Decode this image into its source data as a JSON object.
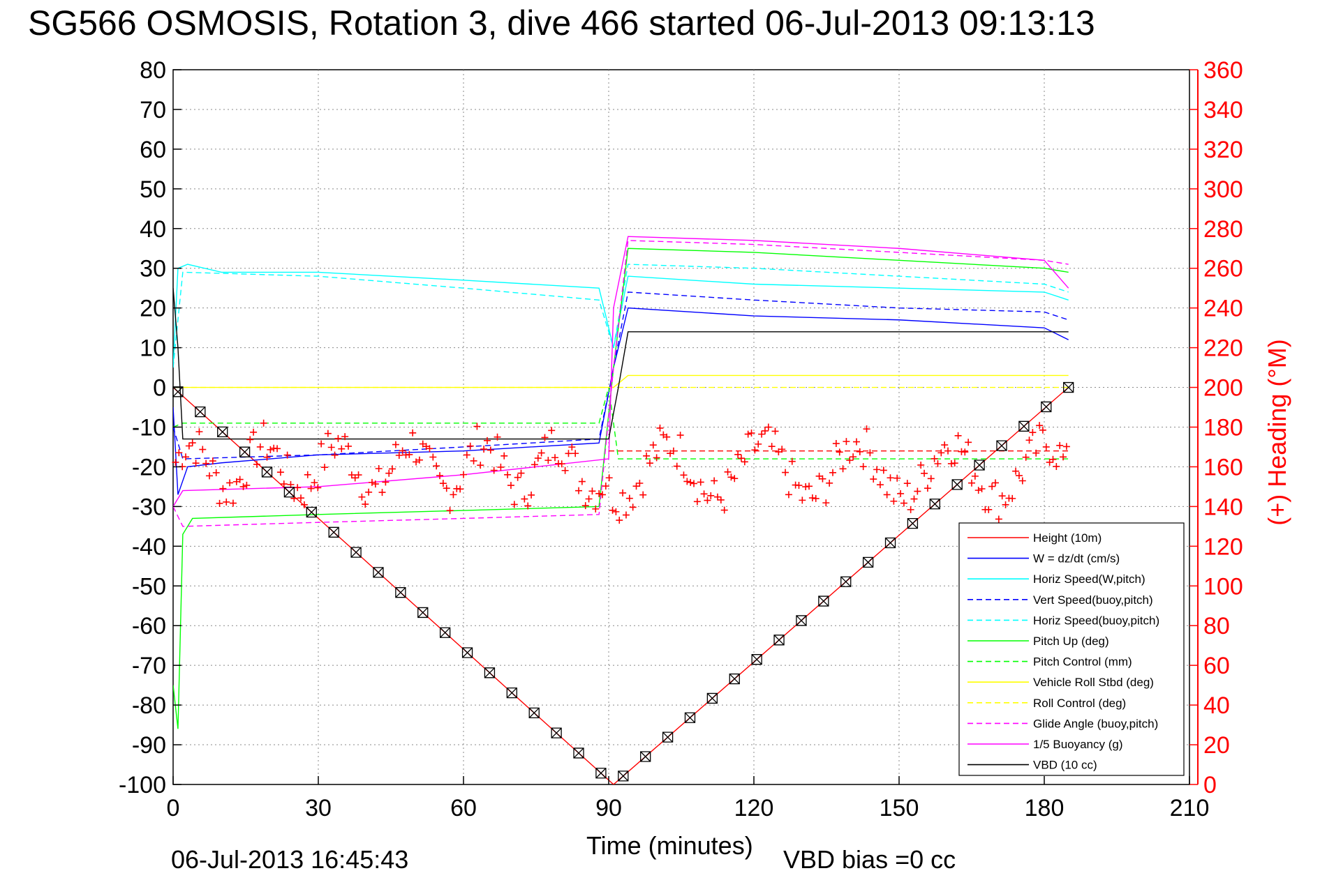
{
  "chart_data": {
    "type": "line",
    "title": "SG566 OSMOSIS, Rotation 3, dive 466 started 06-Jul-2013 09:13:13",
    "xlabel": "Time (minutes)",
    "ylabel_right": "(+) Heading (°M)",
    "xlim": [
      0,
      210
    ],
    "ylim_left": [
      -100,
      80
    ],
    "ylim_right": [
      0,
      360
    ],
    "xticks": [
      "0",
      "30",
      "60",
      "90",
      "120",
      "150",
      "180",
      "210"
    ],
    "yticks_left": [
      "80",
      "70",
      "60",
      "50",
      "40",
      "30",
      "20",
      "10",
      "0",
      "-10",
      "-20",
      "-30",
      "-40",
      "-50",
      "-60",
      "-70",
      "-80",
      "-90",
      "-100"
    ],
    "yticks_right": [
      "360",
      "340",
      "320",
      "300",
      "280",
      "260",
      "240",
      "220",
      "200",
      "180",
      "160",
      "140",
      "120",
      "100",
      "80",
      "60",
      "40",
      "20",
      "0"
    ],
    "grid": true,
    "legend_position": "bottom-right",
    "footer_left": "06-Jul-2013 16:45:43",
    "footer_right": "VBD bias =0 cc",
    "series": [
      {
        "name": "Height (10m)",
        "color": "#ff0000",
        "style": "solid",
        "x": [
          0,
          91,
          185
        ],
        "y": [
          0,
          -100,
          0
        ]
      },
      {
        "name": "W = dz/dt (cm/s)",
        "color": "#0000ff",
        "style": "solid",
        "x": [
          0,
          1,
          3,
          10,
          30,
          60,
          88,
          91,
          94,
          120,
          150,
          180,
          185
        ],
        "y": [
          -5,
          -27,
          -20,
          -19,
          -17,
          -16,
          -14,
          5,
          20,
          18,
          17,
          15,
          12
        ]
      },
      {
        "name": "Horiz Speed(W,pitch)",
        "color": "#00ffff",
        "style": "solid",
        "x": [
          0,
          1,
          3,
          10,
          30,
          60,
          88,
          91,
          94,
          120,
          150,
          180,
          185
        ],
        "y": [
          5,
          30,
          31,
          29,
          29,
          27,
          25,
          10,
          28,
          26,
          25,
          24,
          22
        ]
      },
      {
        "name": "Vert Speed(buoy,pitch)",
        "color": "#0000ff",
        "style": "dashed",
        "x": [
          0,
          2,
          30,
          60,
          88,
          91,
          94,
          120,
          150,
          180,
          185
        ],
        "y": [
          -10,
          -18,
          -17,
          -15,
          -13,
          5,
          24,
          22,
          20,
          19,
          17
        ]
      },
      {
        "name": "Horiz Speed(buoy,pitch)",
        "color": "#00ffff",
        "style": "dashed",
        "x": [
          0,
          2,
          30,
          60,
          88,
          91,
          94,
          120,
          150,
          180,
          185
        ],
        "y": [
          5,
          29,
          28,
          25,
          22,
          10,
          31,
          30,
          28,
          26,
          24
        ]
      },
      {
        "name": "Pitch Up (deg)",
        "color": "#00ff00",
        "style": "solid",
        "x": [
          0,
          1,
          2,
          4,
          30,
          60,
          88,
          91,
          94,
          120,
          150,
          180,
          185
        ],
        "y": [
          -75,
          -86,
          -37,
          -33,
          -32,
          -31,
          -30,
          5,
          35,
          34,
          32,
          30,
          29
        ]
      },
      {
        "name": "Pitch Control (mm)",
        "color": "#00ff00",
        "style": "dashed",
        "x": [
          0,
          2,
          88,
          90,
          92,
          185
        ],
        "y": [
          -10,
          -9,
          -9,
          0,
          -18,
          -18
        ]
      },
      {
        "name": "Vehicle Roll Stbd (deg)",
        "color": "#ffff00",
        "style": "solid",
        "x": [
          0,
          3,
          88,
          91,
          94,
          185
        ],
        "y": [
          0,
          0,
          0,
          0,
          3,
          3
        ]
      },
      {
        "name": "Roll Control (deg)",
        "color": "#ffff00",
        "style": "dashed",
        "x": [
          0,
          3,
          88,
          91,
          94,
          185
        ],
        "y": [
          0,
          0,
          0,
          0,
          0,
          0
        ]
      },
      {
        "name": "Glide Angle (buoy,pitch)",
        "color": "#ff00ff",
        "style": "dashed",
        "x": [
          0,
          2,
          30,
          60,
          88,
          91,
          94,
          120,
          150,
          180,
          185
        ],
        "y": [
          -30,
          -35,
          -34,
          -33,
          -32,
          5,
          37,
          36,
          34,
          32,
          31
        ]
      },
      {
        "name": "1/5 Buoyancy (g)",
        "color": "#ff00ff",
        "style": "solid",
        "x": [
          0,
          2,
          30,
          60,
          90,
          91,
          94,
          120,
          150,
          180,
          185
        ],
        "y": [
          -30,
          -26,
          -25,
          -22,
          -18,
          20,
          38,
          37,
          35,
          32,
          25
        ]
      },
      {
        "name": "VBD (10 cc)",
        "color": "#000000",
        "style": "solid",
        "x": [
          0,
          1,
          2,
          88,
          90,
          92,
          94,
          185
        ],
        "y": [
          25,
          10,
          -13,
          -13,
          -13,
          0,
          14,
          14
        ]
      }
    ],
    "heading_series": {
      "color": "#ff0000",
      "marker": "+",
      "axis": "right",
      "reference_line": {
        "y": 168,
        "x_range": [
          90,
          185
        ],
        "style": "dashed"
      }
    },
    "height_markers": {
      "marker": "square-with-x",
      "color": "#000000",
      "series": "Height (10m)"
    }
  }
}
